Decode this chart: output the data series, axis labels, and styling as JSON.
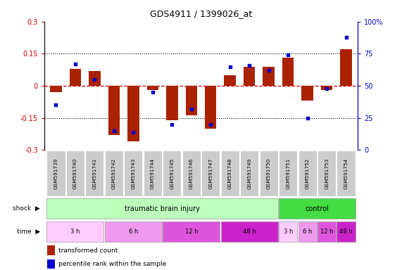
{
  "title": "GDS4911 / 1399026_at",
  "samples": [
    "GSM591739",
    "GSM591740",
    "GSM591741",
    "GSM591742",
    "GSM591743",
    "GSM591744",
    "GSM591745",
    "GSM591746",
    "GSM591747",
    "GSM591748",
    "GSM591749",
    "GSM591750",
    "GSM591751",
    "GSM591752",
    "GSM591753",
    "GSM591754"
  ],
  "transformed_count": [
    -0.03,
    0.08,
    0.07,
    -0.23,
    -0.26,
    -0.02,
    -0.16,
    -0.14,
    -0.2,
    0.05,
    0.09,
    0.09,
    0.13,
    -0.07,
    -0.02,
    0.17
  ],
  "percentile_rank": [
    35,
    67,
    55,
    15,
    14,
    45,
    20,
    32,
    20,
    65,
    66,
    62,
    74,
    25,
    48,
    88
  ],
  "ylim_left": [
    -0.3,
    0.3
  ],
  "ylim_right": [
    0,
    100
  ],
  "yticks_left": [
    -0.3,
    -0.15,
    0,
    0.15,
    0.3
  ],
  "yticks_right": [
    0,
    25,
    50,
    75,
    100
  ],
  "bar_color": "#aa2200",
  "dot_color": "#0000cc",
  "shock_injury_label": "traumatic brain injury",
  "shock_control_label": "control",
  "shock_injury_color": "#bbffbb",
  "shock_control_color": "#44dd44",
  "shock_row_label": "shock",
  "time_row_label": "time",
  "legend_bar_label": "transformed count",
  "legend_dot_label": "percentile rank within the sample",
  "dotted_line_color": "#000000",
  "zero_line_color": "#cc0000",
  "time_groups": [
    {
      "start": 0,
      "end": 2,
      "label": "3 h",
      "color": "#ffccff"
    },
    {
      "start": 3,
      "end": 5,
      "label": "6 h",
      "color": "#ee99ee"
    },
    {
      "start": 6,
      "end": 8,
      "label": "12 h",
      "color": "#dd55dd"
    },
    {
      "start": 9,
      "end": 11,
      "label": "48 h",
      "color": "#cc22cc"
    },
    {
      "start": 12,
      "end": 12,
      "label": "3 h",
      "color": "#ffccff"
    },
    {
      "start": 13,
      "end": 13,
      "label": "6 h",
      "color": "#ee99ee"
    },
    {
      "start": 14,
      "end": 14,
      "label": "12 h",
      "color": "#dd55dd"
    },
    {
      "start": 15,
      "end": 15,
      "label": "48 h",
      "color": "#cc22cc"
    }
  ]
}
